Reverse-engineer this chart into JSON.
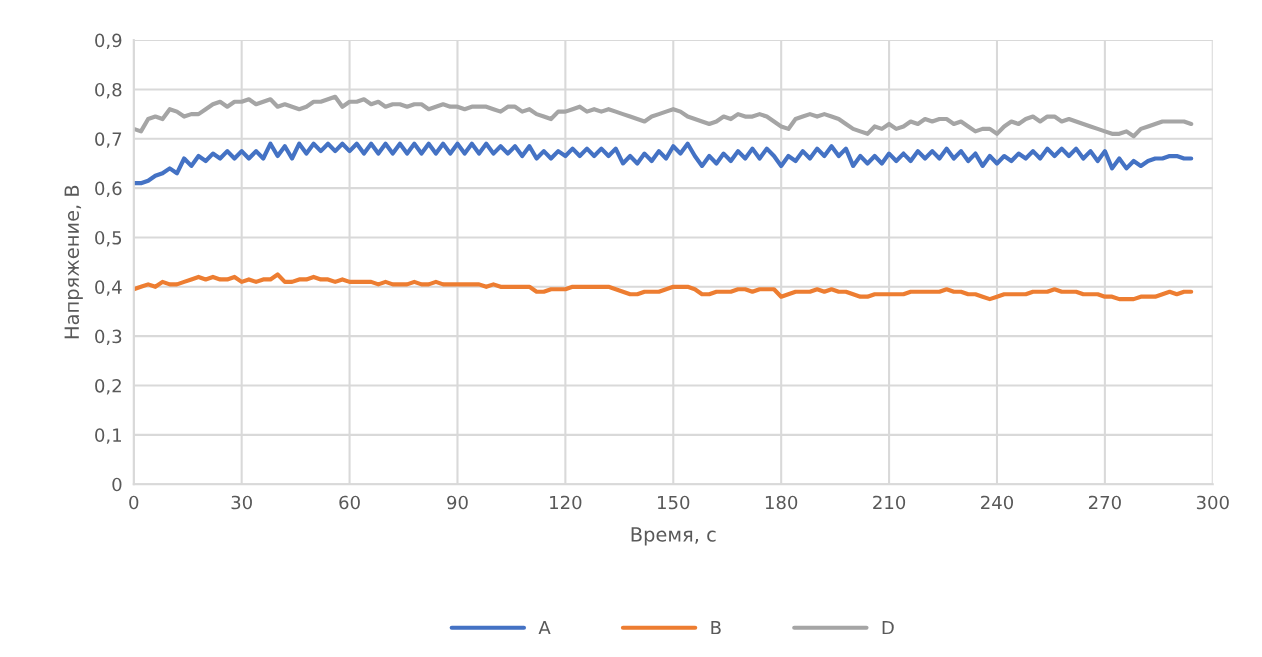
{
  "chart_data": {
    "type": "line",
    "xlabel": "Время, с",
    "ylabel": "Напряжение, В",
    "x": [
      0,
      2,
      4,
      6,
      8,
      10,
      12,
      14,
      16,
      18,
      20,
      22,
      24,
      26,
      28,
      30,
      32,
      34,
      36,
      38,
      40,
      42,
      44,
      46,
      48,
      50,
      52,
      54,
      56,
      58,
      60,
      62,
      64,
      66,
      68,
      70,
      72,
      74,
      76,
      78,
      80,
      82,
      84,
      86,
      88,
      90,
      92,
      94,
      96,
      98,
      100,
      102,
      104,
      106,
      108,
      110,
      112,
      114,
      116,
      118,
      120,
      122,
      124,
      126,
      128,
      130,
      132,
      134,
      136,
      138,
      140,
      142,
      144,
      146,
      148,
      150,
      152,
      154,
      156,
      158,
      160,
      162,
      164,
      166,
      168,
      170,
      172,
      174,
      176,
      178,
      180,
      182,
      184,
      186,
      188,
      190,
      192,
      194,
      196,
      198,
      200,
      202,
      204,
      206,
      208,
      210,
      212,
      214,
      216,
      218,
      220,
      222,
      224,
      226,
      228,
      230,
      232,
      234,
      236,
      238,
      240,
      242,
      244,
      246,
      248,
      250,
      252,
      254,
      256,
      258,
      260,
      262,
      264,
      266,
      268,
      270,
      272,
      274,
      276,
      278,
      280,
      282,
      284,
      286,
      288,
      290,
      292,
      294
    ],
    "series": [
      {
        "name": "A",
        "color": "#4472c4",
        "values": [
          0.61,
          0.61,
          0.615,
          0.625,
          0.63,
          0.64,
          0.63,
          0.66,
          0.645,
          0.665,
          0.655,
          0.67,
          0.66,
          0.675,
          0.66,
          0.675,
          0.66,
          0.675,
          0.66,
          0.69,
          0.665,
          0.685,
          0.66,
          0.69,
          0.67,
          0.69,
          0.675,
          0.69,
          0.675,
          0.69,
          0.675,
          0.69,
          0.67,
          0.69,
          0.67,
          0.69,
          0.67,
          0.69,
          0.67,
          0.69,
          0.67,
          0.69,
          0.67,
          0.69,
          0.67,
          0.69,
          0.67,
          0.69,
          0.67,
          0.69,
          0.67,
          0.685,
          0.67,
          0.685,
          0.665,
          0.685,
          0.66,
          0.675,
          0.66,
          0.675,
          0.665,
          0.68,
          0.665,
          0.68,
          0.665,
          0.68,
          0.665,
          0.68,
          0.65,
          0.665,
          0.65,
          0.67,
          0.655,
          0.675,
          0.66,
          0.685,
          0.67,
          0.69,
          0.665,
          0.645,
          0.665,
          0.65,
          0.67,
          0.655,
          0.675,
          0.66,
          0.68,
          0.66,
          0.68,
          0.665,
          0.645,
          0.665,
          0.655,
          0.675,
          0.66,
          0.68,
          0.665,
          0.685,
          0.665,
          0.68,
          0.645,
          0.665,
          0.65,
          0.665,
          0.65,
          0.67,
          0.655,
          0.67,
          0.655,
          0.675,
          0.66,
          0.675,
          0.66,
          0.68,
          0.66,
          0.675,
          0.655,
          0.67,
          0.645,
          0.665,
          0.65,
          0.665,
          0.655,
          0.67,
          0.66,
          0.675,
          0.66,
          0.68,
          0.665,
          0.68,
          0.665,
          0.68,
          0.66,
          0.675,
          0.655,
          0.675,
          0.64,
          0.66,
          0.64,
          0.655,
          0.645,
          0.655,
          0.66,
          0.66,
          0.665,
          0.665,
          0.66,
          0.66
        ]
      },
      {
        "name": "B",
        "color": "#ed7d31",
        "values": [
          0.395,
          0.4,
          0.405,
          0.4,
          0.41,
          0.405,
          0.405,
          0.41,
          0.415,
          0.42,
          0.415,
          0.42,
          0.415,
          0.415,
          0.42,
          0.41,
          0.415,
          0.41,
          0.415,
          0.415,
          0.425,
          0.41,
          0.41,
          0.415,
          0.415,
          0.42,
          0.415,
          0.415,
          0.41,
          0.415,
          0.41,
          0.41,
          0.41,
          0.41,
          0.405,
          0.41,
          0.405,
          0.405,
          0.405,
          0.41,
          0.405,
          0.405,
          0.41,
          0.405,
          0.405,
          0.405,
          0.405,
          0.405,
          0.405,
          0.4,
          0.405,
          0.4,
          0.4,
          0.4,
          0.4,
          0.4,
          0.39,
          0.39,
          0.395,
          0.395,
          0.395,
          0.4,
          0.4,
          0.4,
          0.4,
          0.4,
          0.4,
          0.395,
          0.39,
          0.385,
          0.385,
          0.39,
          0.39,
          0.39,
          0.395,
          0.4,
          0.4,
          0.4,
          0.395,
          0.385,
          0.385,
          0.39,
          0.39,
          0.39,
          0.395,
          0.395,
          0.39,
          0.395,
          0.395,
          0.395,
          0.38,
          0.385,
          0.39,
          0.39,
          0.39,
          0.395,
          0.39,
          0.395,
          0.39,
          0.39,
          0.385,
          0.38,
          0.38,
          0.385,
          0.385,
          0.385,
          0.385,
          0.385,
          0.39,
          0.39,
          0.39,
          0.39,
          0.39,
          0.395,
          0.39,
          0.39,
          0.385,
          0.385,
          0.38,
          0.375,
          0.38,
          0.385,
          0.385,
          0.385,
          0.385,
          0.39,
          0.39,
          0.39,
          0.395,
          0.39,
          0.39,
          0.39,
          0.385,
          0.385,
          0.385,
          0.38,
          0.38,
          0.375,
          0.375,
          0.375,
          0.38,
          0.38,
          0.38,
          0.385,
          0.39,
          0.385,
          0.39,
          0.39
        ]
      },
      {
        "name": "D",
        "color": "#a5a5a5",
        "values": [
          0.72,
          0.715,
          0.74,
          0.745,
          0.74,
          0.76,
          0.755,
          0.745,
          0.75,
          0.75,
          0.76,
          0.77,
          0.775,
          0.765,
          0.775,
          0.775,
          0.78,
          0.77,
          0.775,
          0.78,
          0.765,
          0.77,
          0.765,
          0.76,
          0.765,
          0.775,
          0.775,
          0.78,
          0.785,
          0.765,
          0.775,
          0.775,
          0.78,
          0.77,
          0.775,
          0.765,
          0.77,
          0.77,
          0.765,
          0.77,
          0.77,
          0.76,
          0.765,
          0.77,
          0.765,
          0.765,
          0.76,
          0.765,
          0.765,
          0.765,
          0.76,
          0.755,
          0.765,
          0.765,
          0.755,
          0.76,
          0.75,
          0.745,
          0.74,
          0.755,
          0.755,
          0.76,
          0.765,
          0.755,
          0.76,
          0.755,
          0.76,
          0.755,
          0.75,
          0.745,
          0.74,
          0.735,
          0.745,
          0.75,
          0.755,
          0.76,
          0.755,
          0.745,
          0.74,
          0.735,
          0.73,
          0.735,
          0.745,
          0.74,
          0.75,
          0.745,
          0.745,
          0.75,
          0.745,
          0.735,
          0.725,
          0.72,
          0.74,
          0.745,
          0.75,
          0.745,
          0.75,
          0.745,
          0.74,
          0.73,
          0.72,
          0.715,
          0.71,
          0.725,
          0.72,
          0.73,
          0.72,
          0.725,
          0.735,
          0.73,
          0.74,
          0.735,
          0.74,
          0.74,
          0.73,
          0.735,
          0.725,
          0.715,
          0.72,
          0.72,
          0.71,
          0.725,
          0.735,
          0.73,
          0.74,
          0.745,
          0.735,
          0.745,
          0.745,
          0.735,
          0.74,
          0.735,
          0.73,
          0.725,
          0.72,
          0.715,
          0.71,
          0.71,
          0.715,
          0.705,
          0.72,
          0.725,
          0.73,
          0.735,
          0.735,
          0.735,
          0.735,
          0.73
        ]
      }
    ],
    "xlim": [
      0,
      300
    ],
    "xticks": [
      0,
      30,
      60,
      90,
      120,
      150,
      180,
      210,
      240,
      270,
      300
    ],
    "ylim": [
      0,
      0.9
    ],
    "yticks": [
      {
        "value": 0,
        "label": "0"
      },
      {
        "value": 0.1,
        "label": "0,1"
      },
      {
        "value": 0.2,
        "label": "0,2"
      },
      {
        "value": 0.3,
        "label": "0,3"
      },
      {
        "value": 0.4,
        "label": "0,4"
      },
      {
        "value": 0.5,
        "label": "0,5"
      },
      {
        "value": 0.6,
        "label": "0,6"
      },
      {
        "value": 0.7,
        "label": "0,7"
      },
      {
        "value": 0.8,
        "label": "0,8"
      },
      {
        "value": 0.9,
        "label": "0,9"
      }
    ],
    "grid": true,
    "legend": "bottom",
    "marker": "none",
    "line_style": "solid"
  }
}
